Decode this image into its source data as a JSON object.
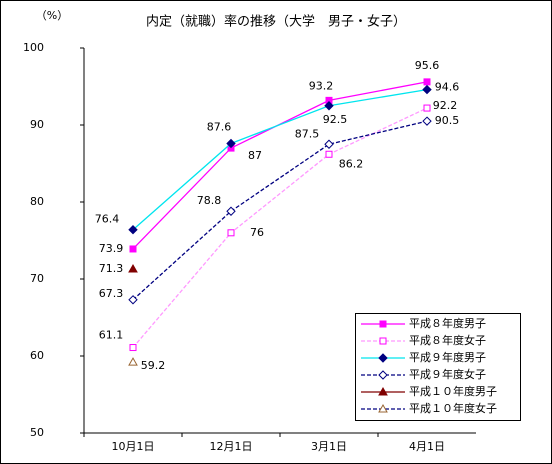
{
  "chart_data": {
    "type": "line",
    "title": "内定（就職）率の推移（大学　男子・女子）",
    "y_unit": "（%）",
    "categories": [
      "10月1日",
      "12月1日",
      "3月1日",
      "4月1日"
    ],
    "ylim": [
      50,
      100
    ],
    "yticks": [
      50,
      60,
      70,
      80,
      90,
      100
    ],
    "legend": "bottom-right",
    "series": [
      {
        "name": "平成８年度男子",
        "color": "#ff00ff",
        "marker": "square",
        "filled": true,
        "marker_color": "#ff00ff",
        "dash": false,
        "values": [
          73.9,
          87.0,
          93.2,
          95.6
        ]
      },
      {
        "name": "平成８年度女子",
        "color": "#ff99ff",
        "marker": "square",
        "filled": false,
        "marker_color": "#ff00ff",
        "dash": true,
        "values": [
          61.1,
          76.0,
          86.2,
          92.2
        ]
      },
      {
        "name": "平成９年度男子",
        "color": "#00e5ee",
        "marker": "diamond",
        "filled": true,
        "marker_color": "#000080",
        "dash": false,
        "values": [
          76.4,
          87.6,
          92.5,
          94.6
        ]
      },
      {
        "name": "平成９年度女子",
        "color": "#000080",
        "marker": "diamond",
        "filled": false,
        "marker_color": "#000080",
        "dash": true,
        "values": [
          67.3,
          78.8,
          87.5,
          90.5
        ]
      },
      {
        "name": "平成１０年度男子",
        "color": "#800000",
        "marker": "triangle",
        "filled": true,
        "marker_color": "#800000",
        "dash": false,
        "values": [
          71.3,
          null,
          null,
          null
        ]
      },
      {
        "name": "平成１０年度女子",
        "color": "#000080",
        "marker": "triangle",
        "filled": false,
        "marker_color": "#996633",
        "dash": true,
        "values": [
          59.2,
          null,
          null,
          null
        ]
      }
    ]
  }
}
